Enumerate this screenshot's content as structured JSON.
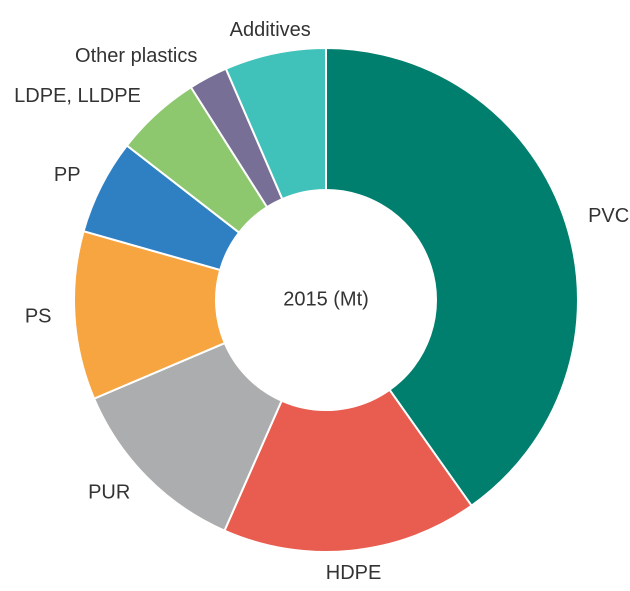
{
  "chart_data": {
    "type": "pie",
    "center_label": "2015 (Mt)",
    "categories": [
      "PVC",
      "HDPE",
      "PUR",
      "PS",
      "PP",
      "LDPE, LLDPE",
      "Other plastics",
      "Additives"
    ],
    "values": [
      40.2,
      16.4,
      12,
      10.8,
      6.1,
      5.5,
      2.5,
      6.5
    ],
    "colors": [
      "#007f6e",
      "#e85d4f",
      "#abadaf",
      "#f7a540",
      "#2f80c3",
      "#8dc86e",
      "#786f96",
      "#40c1b9"
    ]
  }
}
